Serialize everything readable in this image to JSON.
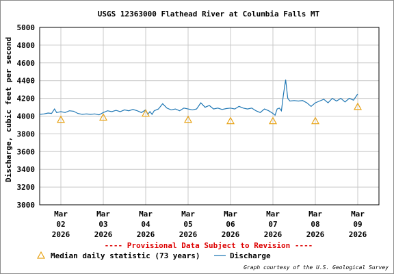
{
  "chart_data": {
    "type": "line",
    "title": "USGS 12363000 Flathead River at Columbia Falls MT",
    "ylabel": "Discharge, cubic feet per second",
    "ylim": [
      3000,
      5000
    ],
    "y_ticks": [
      "5000",
      "4800",
      "4600",
      "4400",
      "4200",
      "4000",
      "3800",
      "3600",
      "3400",
      "3200",
      "3000"
    ],
    "y_tick_values": [
      5000,
      4800,
      4600,
      4400,
      4200,
      4000,
      3800,
      3600,
      3400,
      3200,
      3000
    ],
    "x_tick_days": [
      0,
      1,
      2,
      3,
      4,
      5,
      6,
      7
    ],
    "x_ticks": [
      {
        "month": "Mar",
        "day": "02",
        "year": "2026"
      },
      {
        "month": "Mar",
        "day": "03",
        "year": "2026"
      },
      {
        "month": "Mar",
        "day": "04",
        "year": "2026"
      },
      {
        "month": "Mar",
        "day": "05",
        "year": "2026"
      },
      {
        "month": "Mar",
        "day": "06",
        "year": "2026"
      },
      {
        "month": "Mar",
        "day": "07",
        "year": "2026"
      },
      {
        "month": "Mar",
        "day": "08",
        "year": "2026"
      },
      {
        "month": "Mar",
        "day": "09",
        "year": "2026"
      }
    ],
    "xlim": [
      -0.5,
      7.5
    ],
    "grid": true,
    "series": [
      {
        "name": "Discharge",
        "color": "#1f77b4",
        "x": [
          -0.5,
          -0.4,
          -0.3,
          -0.22,
          -0.15,
          -0.1,
          -0.05,
          0,
          0.1,
          0.2,
          0.3,
          0.4,
          0.5,
          0.6,
          0.7,
          0.8,
          0.9,
          1.0,
          1.1,
          1.2,
          1.3,
          1.4,
          1.5,
          1.6,
          1.7,
          1.8,
          1.9,
          2.0,
          2.05,
          2.1,
          2.15,
          2.2,
          2.3,
          2.4,
          2.5,
          2.6,
          2.7,
          2.8,
          2.9,
          3.0,
          3.1,
          3.2,
          3.3,
          3.4,
          3.5,
          3.6,
          3.7,
          3.8,
          3.9,
          4.0,
          4.1,
          4.2,
          4.3,
          4.4,
          4.5,
          4.6,
          4.7,
          4.8,
          4.9,
          5.0,
          5.05,
          5.1,
          5.15,
          5.2,
          5.25,
          5.3,
          5.35,
          5.4,
          5.5,
          5.6,
          5.7,
          5.8,
          5.9,
          6.0,
          6.1,
          6.2,
          6.3,
          6.4,
          6.5,
          6.6,
          6.7,
          6.8,
          6.9,
          7.0
        ],
        "y": [
          4020,
          4025,
          4035,
          4030,
          4080,
          4040,
          4045,
          4050,
          4040,
          4060,
          4055,
          4030,
          4020,
          4025,
          4020,
          4025,
          4015,
          4040,
          4060,
          4050,
          4065,
          4050,
          4070,
          4060,
          4075,
          4060,
          4040,
          4070,
          4020,
          4050,
          4020,
          4060,
          4080,
          4140,
          4090,
          4070,
          4080,
          4060,
          4090,
          4080,
          4070,
          4080,
          4150,
          4100,
          4120,
          4080,
          4090,
          4075,
          4085,
          4090,
          4080,
          4110,
          4090,
          4080,
          4090,
          4060,
          4040,
          4080,
          4060,
          4030,
          4010,
          4080,
          4090,
          4060,
          4250,
          4410,
          4200,
          4170,
          4175,
          4170,
          4175,
          4150,
          4110,
          4150,
          4170,
          4190,
          4150,
          4200,
          4170,
          4200,
          4160,
          4200,
          4180,
          4250
        ]
      },
      {
        "name": "Median daily statistic (73 years)",
        "color": "#e8a317",
        "marker": "triangle",
        "x": [
          0,
          1,
          2,
          3,
          4,
          5,
          6,
          7
        ],
        "y": [
          3960,
          3985,
          4030,
          3960,
          3945,
          3945,
          3945,
          4105
        ]
      }
    ],
    "provisional_note": "---- Provisional Data Subject to Revision ----",
    "credit": "Graph courtesy of the U.S. Geological Survey"
  }
}
